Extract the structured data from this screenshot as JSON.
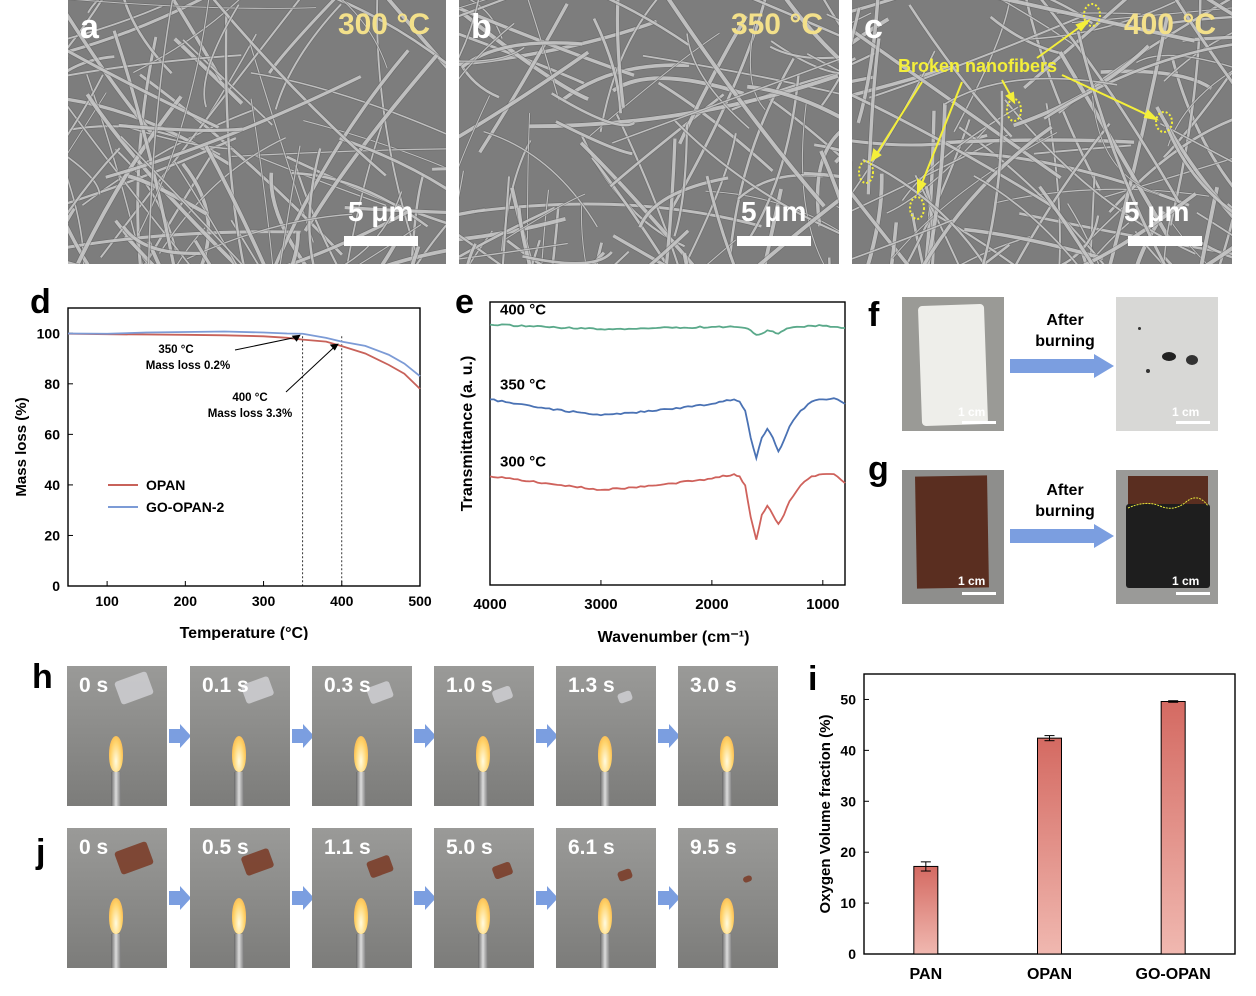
{
  "panels": {
    "a": {
      "letter": "a",
      "temp": "300 °C",
      "scale": "5 μm"
    },
    "b": {
      "letter": "b",
      "temp": "350 °C",
      "scale": "5 μm"
    },
    "c": {
      "letter": "c",
      "temp": "400 °C",
      "scale": "5 μm",
      "annotation": "Broken nanofibers"
    },
    "d": {
      "letter": "d"
    },
    "e": {
      "letter": "e"
    },
    "f": {
      "letter": "f",
      "arrow_label_1": "After",
      "arrow_label_2": "burning",
      "scale_left": "1 cm",
      "scale_right": "1 cm"
    },
    "g": {
      "letter": "g",
      "arrow_label_1": "After",
      "arrow_label_2": "burning",
      "scale_left": "1 cm",
      "scale_right": "1 cm"
    },
    "h": {
      "letter": "h",
      "times": [
        "0 s",
        "0.1 s",
        "0.3 s",
        "1.0 s",
        "1.3 s",
        "3.0 s"
      ]
    },
    "i": {
      "letter": "i"
    },
    "j": {
      "letter": "j",
      "times": [
        "0 s",
        "0.5 s",
        "1.1 s",
        "5.0 s",
        "6.1 s",
        "9.5 s"
      ]
    }
  },
  "colors": {
    "opan": "#c8625a",
    "go_opan": "#7c9bd6",
    "ftir_400": "#5aa98a",
    "ftir_350": "#4a72b4",
    "ftir_300": "#cf625c",
    "arrow_blue": "#7b9ee0",
    "bar_top": "#d46a62",
    "bar_bottom": "#f0b8b0",
    "annot_yellow": "#f4ef3a"
  },
  "chart_data": [
    {
      "type": "line",
      "panel": "d",
      "xlabel": "Temperature (°C)",
      "ylabel": "Mass loss (%)",
      "xlim": [
        50,
        500
      ],
      "ylim": [
        0,
        100
      ],
      "xticks": [
        "100",
        "200",
        "300",
        "400",
        "500"
      ],
      "yticks": [
        "0",
        "20",
        "40",
        "60",
        "80",
        "100"
      ],
      "legend_position": "center-left",
      "series": [
        {
          "name": "OPAN",
          "x": [
            50,
            100,
            150,
            200,
            250,
            300,
            330,
            350,
            380,
            400,
            430,
            460,
            480,
            500
          ],
          "y": [
            99.8,
            99.6,
            99.5,
            99.4,
            99.2,
            98.8,
            98.2,
            97.5,
            96.7,
            94.9,
            92.0,
            87.5,
            84.0,
            78.0
          ]
        },
        {
          "name": "GO-OPAN-2",
          "x": [
            50,
            100,
            150,
            200,
            250,
            300,
            330,
            350,
            380,
            400,
            430,
            460,
            480,
            500
          ],
          "y": [
            99.9,
            99.8,
            100.3,
            100.5,
            100.7,
            100.3,
            99.9,
            99.8,
            98.2,
            96.7,
            95.0,
            91.5,
            88.0,
            83.0
          ]
        }
      ],
      "annotations": [
        {
          "line1": "350 °C",
          "line2": "Mass loss 0.2%"
        },
        {
          "line1": "400 °C",
          "line2": "Mass loss 3.3%"
        }
      ],
      "vlines": [
        350,
        400
      ]
    },
    {
      "type": "line",
      "panel": "e",
      "xlabel": "Wavenumber (cm⁻¹)",
      "ylabel": "Transmittance (a. u.)",
      "xlim": [
        4000,
        800
      ],
      "xticks": [
        "4000",
        "3000",
        "2000",
        "1000"
      ],
      "series": [
        {
          "name": "400 °C",
          "x": [
            4000,
            3500,
            3000,
            2500,
            2000,
            1800,
            1700,
            1650,
            1600,
            1550,
            1500,
            1450,
            1400,
            1350,
            1300,
            1200,
            1100,
            1000,
            900,
            800
          ],
          "y": [
            0.9,
            0.89,
            0.88,
            0.885,
            0.89,
            0.89,
            0.885,
            0.875,
            0.855,
            0.86,
            0.875,
            0.87,
            0.86,
            0.875,
            0.885,
            0.89,
            0.895,
            0.895,
            0.89,
            0.885
          ]
        },
        {
          "name": "350 °C",
          "x": [
            4000,
            3500,
            3000,
            2500,
            2000,
            1800,
            1750,
            1700,
            1650,
            1600,
            1550,
            1500,
            1450,
            1400,
            1350,
            1300,
            1200,
            1100,
            1000,
            900,
            800
          ],
          "y": [
            0.57,
            0.53,
            0.5,
            0.52,
            0.55,
            0.57,
            0.56,
            0.52,
            0.4,
            0.31,
            0.4,
            0.44,
            0.4,
            0.34,
            0.39,
            0.45,
            0.52,
            0.56,
            0.57,
            0.575,
            0.55
          ]
        },
        {
          "name": "300 °C",
          "x": [
            4000,
            3500,
            3000,
            2500,
            2000,
            1800,
            1750,
            1700,
            1650,
            1600,
            1550,
            1500,
            1450,
            1400,
            1350,
            1300,
            1200,
            1100,
            1000,
            900,
            800
          ],
          "y": [
            0.23,
            0.2,
            0.17,
            0.19,
            0.22,
            0.24,
            0.23,
            0.19,
            0.05,
            -0.05,
            0.06,
            0.1,
            0.06,
            0.02,
            0.06,
            0.12,
            0.19,
            0.23,
            0.24,
            0.24,
            0.2
          ]
        }
      ]
    },
    {
      "type": "bar",
      "panel": "i",
      "ylabel": "Oxygen Volume fraction (%)",
      "categories": [
        "PAN",
        "OPAN",
        "GO-OPAN"
      ],
      "values": [
        17.2,
        42.4,
        49.6
      ],
      "errors": [
        0.9,
        0.5,
        0.15
      ],
      "ylim": [
        0,
        55
      ],
      "yticks": [
        "0",
        "10",
        "20",
        "30",
        "40",
        "50"
      ]
    }
  ]
}
